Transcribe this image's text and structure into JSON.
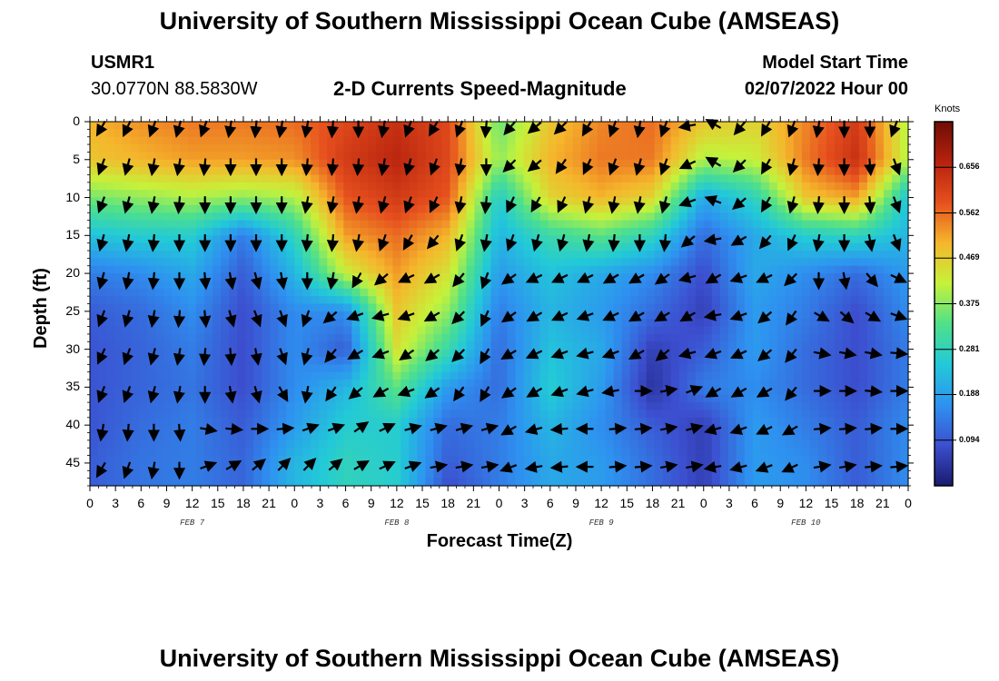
{
  "header": {
    "title": "University of Southern Mississippi Ocean Cube (AMSEAS)",
    "station_id": "USMR1",
    "coordinates": "30.0770N  88.5830W",
    "plot_title": "2-D Currents Speed-Magnitude",
    "model_start_label": "Model Start Time",
    "model_start_value": "02/07/2022 Hour 00"
  },
  "footer": {
    "title": "University of Southern Mississippi Ocean Cube (AMSEAS)"
  },
  "chart_data": {
    "type": "heatmap",
    "title": "2-D Currents Speed-Magnitude",
    "xlabel": "Forecast Time(Z)",
    "ylabel": "Depth (ft)",
    "x_tick_labels": [
      "0",
      "3",
      "6",
      "9",
      "12",
      "15",
      "18",
      "21",
      "0",
      "3",
      "6",
      "9",
      "12",
      "15",
      "18",
      "21",
      "0",
      "3",
      "6",
      "9",
      "12",
      "15",
      "18",
      "21",
      "0",
      "3",
      "6",
      "9",
      "12",
      "15",
      "18",
      "21",
      "0"
    ],
    "x_range_hours": [
      0,
      96
    ],
    "day_labels": [
      {
        "label": "FEB 7",
        "hour": 12
      },
      {
        "label": "FEB 8",
        "hour": 36
      },
      {
        "label": "FEB 9",
        "hour": 60
      },
      {
        "label": "FEB 10",
        "hour": 84
      }
    ],
    "y_ticks": [
      0,
      5,
      10,
      15,
      20,
      25,
      30,
      35,
      40,
      45
    ],
    "y_tick_labels": [
      "0",
      "5",
      "10",
      "15",
      "20",
      "25",
      "30",
      "35",
      "40",
      "45"
    ],
    "y_range_ft": [
      0,
      48
    ],
    "colorbar": {
      "title": "Knots",
      "ticks": [
        0.094,
        0.188,
        0.281,
        0.375,
        0.469,
        0.562,
        0.656
      ],
      "tick_labels": [
        "0.094",
        "0.188",
        "0.281",
        "0.375",
        "0.469",
        "0.562",
        "0.656"
      ],
      "range": [
        0,
        0.75
      ]
    },
    "colors": {
      "stops": [
        "#1a1a6e",
        "#3c4fcf",
        "#2e92f0",
        "#22c9d8",
        "#4fe08a",
        "#c6f23a",
        "#f5b62c",
        "#e6501e",
        "#b7220e",
        "#6e0d05"
      ]
    },
    "speed_hours": [
      0,
      6,
      12,
      18,
      24,
      30,
      36,
      42,
      48,
      54,
      60,
      66,
      72,
      78,
      84,
      90,
      96
    ],
    "speed_depths_ft": [
      0,
      5,
      10,
      15,
      20,
      25,
      30,
      35,
      40,
      45,
      48
    ],
    "speed_knots": [
      [
        0.5,
        0.53,
        0.55,
        0.55,
        0.56,
        0.6,
        0.64,
        0.6,
        0.35,
        0.48,
        0.54,
        0.56,
        0.48,
        0.46,
        0.54,
        0.62,
        0.4
      ],
      [
        0.48,
        0.5,
        0.52,
        0.52,
        0.53,
        0.62,
        0.66,
        0.6,
        0.38,
        0.5,
        0.55,
        0.55,
        0.4,
        0.42,
        0.55,
        0.64,
        0.4
      ],
      [
        0.36,
        0.38,
        0.4,
        0.38,
        0.4,
        0.58,
        0.62,
        0.58,
        0.26,
        0.46,
        0.5,
        0.46,
        0.2,
        0.28,
        0.48,
        0.52,
        0.24
      ],
      [
        0.24,
        0.26,
        0.26,
        0.14,
        0.28,
        0.52,
        0.56,
        0.5,
        0.22,
        0.3,
        0.34,
        0.28,
        0.12,
        0.2,
        0.26,
        0.28,
        0.22
      ],
      [
        0.14,
        0.16,
        0.2,
        0.1,
        0.22,
        0.42,
        0.52,
        0.44,
        0.18,
        0.24,
        0.2,
        0.16,
        0.08,
        0.2,
        0.16,
        0.12,
        0.18
      ],
      [
        0.1,
        0.12,
        0.16,
        0.08,
        0.16,
        0.16,
        0.48,
        0.38,
        0.14,
        0.22,
        0.18,
        0.12,
        0.06,
        0.18,
        0.14,
        0.08,
        0.16
      ],
      [
        0.09,
        0.11,
        0.14,
        0.08,
        0.16,
        0.1,
        0.44,
        0.3,
        0.12,
        0.24,
        0.2,
        0.06,
        0.1,
        0.18,
        0.12,
        0.08,
        0.14
      ],
      [
        0.09,
        0.11,
        0.13,
        0.08,
        0.16,
        0.22,
        0.34,
        0.18,
        0.12,
        0.26,
        0.18,
        0.04,
        0.14,
        0.16,
        0.12,
        0.08,
        0.14
      ],
      [
        0.09,
        0.12,
        0.14,
        0.1,
        0.18,
        0.26,
        0.26,
        0.12,
        0.14,
        0.22,
        0.16,
        0.1,
        0.06,
        0.18,
        0.14,
        0.1,
        0.16
      ],
      [
        0.1,
        0.13,
        0.14,
        0.11,
        0.22,
        0.28,
        0.26,
        0.1,
        0.14,
        0.2,
        0.18,
        0.12,
        0.06,
        0.18,
        0.16,
        0.1,
        0.16
      ],
      [
        0.1,
        0.13,
        0.14,
        0.11,
        0.22,
        0.28,
        0.26,
        0.08,
        0.14,
        0.2,
        0.18,
        0.12,
        0.06,
        0.18,
        0.16,
        0.1,
        0.16
      ]
    ],
    "vector_hours": [
      1.5,
      4.5,
      7.5,
      10.5,
      13.5,
      16.5,
      19.5,
      22.5,
      25.5,
      28.5,
      31.5,
      34.5,
      37.5,
      40.5,
      43.5,
      46.5,
      49.5,
      52.5,
      55.5,
      58.5,
      61.5,
      64.5,
      67.5,
      70.5,
      73.5,
      76.5,
      79.5,
      82.5,
      85.5,
      88.5,
      91.5,
      94.5
    ],
    "vector_depths_ft": [
      0.5,
      5.5,
      10.5,
      15.5,
      20.5,
      25.5,
      30.5,
      35.5,
      40.5,
      45.5
    ],
    "vector_dir_deg": [
      [
        210,
        205,
        200,
        195,
        200,
        190,
        185,
        190,
        190,
        185,
        180,
        190,
        200,
        210,
        200,
        185,
        220,
        230,
        225,
        210,
        200,
        190,
        200,
        260,
        300,
        220,
        210,
        200,
        190,
        180,
        180,
        200
      ],
      [
        200,
        195,
        190,
        190,
        185,
        180,
        180,
        180,
        185,
        185,
        185,
        190,
        195,
        200,
        190,
        180,
        225,
        230,
        215,
        205,
        200,
        195,
        200,
        245,
        300,
        225,
        210,
        195,
        185,
        180,
        175,
        160
      ],
      [
        200,
        195,
        190,
        185,
        180,
        180,
        180,
        180,
        190,
        190,
        190,
        195,
        200,
        205,
        190,
        185,
        205,
        210,
        205,
        195,
        190,
        190,
        195,
        250,
        290,
        230,
        210,
        195,
        185,
        180,
        175,
        160
      ],
      [
        195,
        190,
        185,
        180,
        180,
        180,
        180,
        180,
        185,
        185,
        190,
        200,
        210,
        220,
        200,
        190,
        200,
        195,
        195,
        190,
        185,
        180,
        185,
        230,
        260,
        240,
        220,
        205,
        190,
        180,
        170,
        160
      ],
      [
        195,
        190,
        185,
        180,
        175,
        170,
        165,
        170,
        180,
        190,
        210,
        230,
        245,
        240,
        220,
        200,
        235,
        245,
        245,
        245,
        240,
        240,
        235,
        255,
        240,
        250,
        245,
        225,
        180,
        170,
        140,
        115
      ],
      [
        200,
        195,
        190,
        185,
        175,
        165,
        160,
        160,
        200,
        230,
        250,
        255,
        250,
        240,
        225,
        205,
        235,
        240,
        245,
        250,
        245,
        240,
        240,
        240,
        260,
        250,
        230,
        215,
        120,
        130,
        120,
        110
      ],
      [
        205,
        200,
        195,
        190,
        185,
        175,
        170,
        160,
        195,
        220,
        240,
        250,
        235,
        230,
        225,
        210,
        240,
        245,
        250,
        255,
        250,
        240,
        230,
        255,
        250,
        245,
        230,
        220,
        100,
        100,
        100,
        95
      ],
      [
        200,
        200,
        195,
        190,
        180,
        170,
        165,
        150,
        190,
        215,
        230,
        240,
        250,
        235,
        215,
        210,
        235,
        240,
        250,
        255,
        260,
        90,
        80,
        70,
        240,
        240,
        240,
        220,
        90,
        90,
        95,
        90
      ],
      [
        190,
        185,
        180,
        175,
        100,
        95,
        90,
        85,
        70,
        70,
        55,
        65,
        75,
        75,
        75,
        75,
        240,
        255,
        265,
        270,
        85,
        85,
        80,
        75,
        255,
        250,
        245,
        240,
        85,
        85,
        85,
        90
      ],
      [
        210,
        200,
        190,
        180,
        70,
        60,
        50,
        45,
        45,
        50,
        60,
        65,
        70,
        80,
        80,
        80,
        250,
        260,
        265,
        270,
        85,
        85,
        80,
        80,
        260,
        255,
        250,
        245,
        80,
        80,
        85,
        85
      ]
    ],
    "vector_speed_rel": [
      [
        1,
        1,
        1,
        1,
        1,
        1,
        1,
        1,
        1,
        1,
        1,
        1,
        1,
        1,
        1,
        1,
        1,
        1,
        1,
        1,
        1,
        1,
        1,
        1,
        1,
        1,
        1,
        1,
        1,
        1,
        1,
        1
      ],
      [
        1,
        1,
        1,
        1,
        1,
        1,
        1,
        1,
        1,
        1,
        1,
        1,
        1,
        1,
        1,
        1,
        1,
        1,
        1,
        1,
        1,
        1,
        1,
        1,
        1,
        1,
        1,
        1,
        1,
        1,
        1,
        1
      ],
      [
        1,
        1,
        1,
        1,
        1,
        1,
        1,
        1,
        1,
        1,
        1,
        1,
        1,
        1,
        1,
        1,
        1,
        1,
        1,
        1,
        1,
        1,
        1,
        1,
        1,
        1,
        1,
        1,
        1,
        1,
        1,
        1
      ],
      [
        1,
        1,
        1,
        1,
        1,
        1,
        1,
        1,
        1,
        1,
        1,
        1,
        1,
        1,
        1,
        1,
        1,
        1,
        1,
        1,
        1,
        1,
        1,
        1,
        1,
        1,
        1,
        1,
        1,
        1,
        1,
        1
      ],
      [
        1,
        1,
        1,
        1,
        1,
        1,
        1,
        1,
        1,
        1,
        1,
        1,
        1,
        1,
        1,
        1,
        1,
        1,
        1,
        1,
        1,
        1,
        1,
        1,
        1,
        1,
        1,
        1,
        1,
        1,
        1,
        1
      ],
      [
        1,
        1,
        1,
        1,
        1,
        1,
        1,
        1,
        1,
        1,
        1,
        1,
        1,
        1,
        1,
        1,
        1,
        1,
        1,
        1,
        1,
        1,
        1,
        1,
        1,
        1,
        1,
        1,
        1,
        1,
        1,
        1
      ],
      [
        1,
        1,
        1,
        1,
        1,
        1,
        1,
        1,
        1,
        1,
        1,
        1,
        1,
        1,
        1,
        1,
        1,
        1,
        1,
        1,
        1,
        1,
        1,
        1,
        1,
        1,
        1,
        1,
        1,
        1,
        1,
        1
      ],
      [
        1,
        1,
        1,
        1,
        1,
        1,
        1,
        1,
        1,
        1,
        1,
        1,
        1,
        1,
        1,
        1,
        1,
        1,
        1,
        1,
        1,
        1,
        1,
        1,
        1,
        1,
        1,
        1,
        1,
        1,
        1,
        1
      ],
      [
        1,
        1,
        1,
        1,
        1,
        1,
        1,
        1,
        1,
        1,
        1,
        1,
        1,
        1,
        1,
        1,
        1,
        1,
        1,
        1,
        1,
        1,
        1,
        1,
        1,
        1,
        1,
        1,
        1,
        1,
        1,
        1
      ],
      [
        1,
        1,
        1,
        1,
        1,
        1,
        1,
        1,
        1,
        1,
        1,
        1,
        1,
        1,
        1,
        1,
        1,
        1,
        1,
        1,
        1,
        1,
        1,
        1,
        1,
        1,
        1,
        1,
        1,
        1,
        1,
        1
      ]
    ]
  }
}
